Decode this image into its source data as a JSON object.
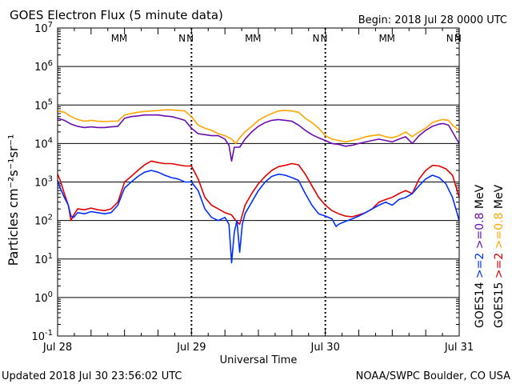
{
  "chart_data": {
    "type": "line",
    "title": "GOES Electron Flux (5 minute data)",
    "begin_label": "Begin: 2018 Jul 28 0000 UTC",
    "xlabel": "Universal Time",
    "ylabel": "Particles cm⁻²s⁻¹sr⁻¹",
    "updated_label": "Updated 2018 Jul 30 23:56:02 UTC",
    "credit_label": "NOAA/SWPC Boulder, CO USA",
    "x_tick_labels": [
      "Jul 28",
      "Jul 29",
      "Jul 30",
      "Jul 31"
    ],
    "x_days": [
      0,
      1,
      2,
      3
    ],
    "y_scale": "log",
    "ylim": [
      0.1,
      10000000
    ],
    "y_tick_exponents": [
      7,
      6,
      5,
      4,
      3,
      2,
      1,
      0,
      -1
    ],
    "alert_threshold": 1000,
    "grid": true,
    "markers": [
      {
        "label": "M",
        "day": 0.43,
        "color": "#0030ff"
      },
      {
        "label": "M",
        "day": 0.49,
        "color": "#e00000"
      },
      {
        "label": "N",
        "day": 0.93,
        "color": "#0030ff"
      },
      {
        "label": "N",
        "day": 0.99,
        "color": "#e00000"
      },
      {
        "label": "M",
        "day": 1.43,
        "color": "#0030ff"
      },
      {
        "label": "M",
        "day": 1.49,
        "color": "#e00000"
      },
      {
        "label": "N",
        "day": 1.93,
        "color": "#0030ff"
      },
      {
        "label": "N",
        "day": 1.99,
        "color": "#e00000"
      },
      {
        "label": "M",
        "day": 2.43,
        "color": "#0030ff"
      },
      {
        "label": "M",
        "day": 2.49,
        "color": "#e00000"
      },
      {
        "label": "N",
        "day": 2.93,
        "color": "#0030ff"
      },
      {
        "label": "N",
        "day": 2.99,
        "color": "#e00000"
      }
    ],
    "legend": {
      "col1": [
        {
          "text": "GOES14",
          "color": "#000000"
        },
        {
          "text": ">=2",
          "color": "#0030ff"
        },
        {
          "text": ">=0.8",
          "color": "#6a0dad"
        },
        {
          "text": "MeV",
          "color": "#000000"
        }
      ],
      "col2": [
        {
          "text": "GOES15",
          "color": "#000000"
        },
        {
          "text": ">=2",
          "color": "#e00000"
        },
        {
          "text": ">=0.8",
          "color": "#ffa500"
        },
        {
          "text": "MeV",
          "color": "#000000"
        }
      ]
    },
    "series": [
      {
        "name": "GOES15 >=0.8 MeV",
        "color": "#ffa500",
        "points": [
          [
            0.0,
            70000
          ],
          [
            0.05,
            65000
          ],
          [
            0.1,
            50000
          ],
          [
            0.15,
            42000
          ],
          [
            0.2,
            38000
          ],
          [
            0.25,
            40000
          ],
          [
            0.3,
            38000
          ],
          [
            0.35,
            37000
          ],
          [
            0.4,
            38000
          ],
          [
            0.45,
            38000
          ],
          [
            0.5,
            55000
          ],
          [
            0.55,
            60000
          ],
          [
            0.6,
            65000
          ],
          [
            0.65,
            68000
          ],
          [
            0.7,
            70000
          ],
          [
            0.75,
            72000
          ],
          [
            0.8,
            75000
          ],
          [
            0.85,
            75000
          ],
          [
            0.9,
            72000
          ],
          [
            0.95,
            70000
          ],
          [
            1.0,
            50000
          ],
          [
            1.05,
            30000
          ],
          [
            1.1,
            25000
          ],
          [
            1.15,
            22000
          ],
          [
            1.2,
            18000
          ],
          [
            1.25,
            16000
          ],
          [
            1.3,
            13000
          ],
          [
            1.33,
            10000
          ],
          [
            1.36,
            14000
          ],
          [
            1.4,
            20000
          ],
          [
            1.45,
            28000
          ],
          [
            1.5,
            40000
          ],
          [
            1.55,
            50000
          ],
          [
            1.6,
            60000
          ],
          [
            1.65,
            70000
          ],
          [
            1.7,
            72000
          ],
          [
            1.75,
            70000
          ],
          [
            1.8,
            65000
          ],
          [
            1.85,
            45000
          ],
          [
            1.9,
            35000
          ],
          [
            1.95,
            25000
          ],
          [
            2.0,
            16000
          ],
          [
            2.05,
            13000
          ],
          [
            2.1,
            12000
          ],
          [
            2.15,
            11000
          ],
          [
            2.2,
            12000
          ],
          [
            2.25,
            13000
          ],
          [
            2.3,
            15000
          ],
          [
            2.35,
            16000
          ],
          [
            2.4,
            17000
          ],
          [
            2.45,
            15000
          ],
          [
            2.5,
            14000
          ],
          [
            2.55,
            16000
          ],
          [
            2.6,
            20000
          ],
          [
            2.65,
            15000
          ],
          [
            2.7,
            20000
          ],
          [
            2.75,
            25000
          ],
          [
            2.8,
            35000
          ],
          [
            2.85,
            40000
          ],
          [
            2.88,
            42000
          ],
          [
            2.92,
            40000
          ],
          [
            2.95,
            30000
          ],
          [
            2.98,
            25000
          ],
          [
            3.0,
            22000
          ]
        ]
      },
      {
        "name": "GOES14 >=0.8 MeV",
        "color": "#6a0dad",
        "points": [
          [
            0.0,
            45000
          ],
          [
            0.05,
            40000
          ],
          [
            0.1,
            32000
          ],
          [
            0.15,
            28000
          ],
          [
            0.2,
            26000
          ],
          [
            0.25,
            27000
          ],
          [
            0.3,
            26000
          ],
          [
            0.35,
            26000
          ],
          [
            0.4,
            27000
          ],
          [
            0.45,
            28000
          ],
          [
            0.5,
            45000
          ],
          [
            0.55,
            50000
          ],
          [
            0.6,
            52000
          ],
          [
            0.65,
            55000
          ],
          [
            0.7,
            55000
          ],
          [
            0.75,
            55000
          ],
          [
            0.8,
            52000
          ],
          [
            0.85,
            50000
          ],
          [
            0.9,
            45000
          ],
          [
            0.95,
            40000
          ],
          [
            1.0,
            25000
          ],
          [
            1.05,
            18000
          ],
          [
            1.1,
            17000
          ],
          [
            1.15,
            16000
          ],
          [
            1.2,
            16000
          ],
          [
            1.25,
            13000
          ],
          [
            1.28,
            9000
          ],
          [
            1.3,
            3500
          ],
          [
            1.32,
            8000
          ],
          [
            1.36,
            8000
          ],
          [
            1.4,
            13000
          ],
          [
            1.45,
            20000
          ],
          [
            1.5,
            28000
          ],
          [
            1.55,
            35000
          ],
          [
            1.6,
            40000
          ],
          [
            1.65,
            42000
          ],
          [
            1.7,
            40000
          ],
          [
            1.75,
            38000
          ],
          [
            1.8,
            30000
          ],
          [
            1.85,
            22000
          ],
          [
            1.9,
            17000
          ],
          [
            1.95,
            14000
          ],
          [
            2.0,
            12000
          ],
          [
            2.05,
            10000
          ],
          [
            2.1,
            9500
          ],
          [
            2.15,
            8500
          ],
          [
            2.2,
            9000
          ],
          [
            2.25,
            10000
          ],
          [
            2.3,
            11000
          ],
          [
            2.35,
            12000
          ],
          [
            2.4,
            13000
          ],
          [
            2.45,
            12000
          ],
          [
            2.5,
            11000
          ],
          [
            2.55,
            13000
          ],
          [
            2.6,
            15000
          ],
          [
            2.65,
            10000
          ],
          [
            2.7,
            16000
          ],
          [
            2.75,
            22000
          ],
          [
            2.8,
            28000
          ],
          [
            2.85,
            32000
          ],
          [
            2.88,
            33000
          ],
          [
            2.92,
            30000
          ],
          [
            2.95,
            20000
          ],
          [
            2.98,
            13000
          ],
          [
            3.0,
            10000
          ]
        ]
      },
      {
        "name": "GOES15 >=2 MeV",
        "color": "#e00000",
        "points": [
          [
            0.0,
            1600
          ],
          [
            0.02,
            1100
          ],
          [
            0.05,
            500
          ],
          [
            0.08,
            250
          ],
          [
            0.1,
            100
          ],
          [
            0.12,
            140
          ],
          [
            0.15,
            200
          ],
          [
            0.2,
            190
          ],
          [
            0.25,
            210
          ],
          [
            0.3,
            190
          ],
          [
            0.35,
            180
          ],
          [
            0.4,
            200
          ],
          [
            0.45,
            300
          ],
          [
            0.5,
            1000
          ],
          [
            0.55,
            1400
          ],
          [
            0.6,
            2000
          ],
          [
            0.65,
            2800
          ],
          [
            0.7,
            3500
          ],
          [
            0.75,
            3200
          ],
          [
            0.8,
            3000
          ],
          [
            0.85,
            3000
          ],
          [
            0.9,
            2800
          ],
          [
            0.95,
            2600
          ],
          [
            1.0,
            2600
          ],
          [
            1.05,
            1200
          ],
          [
            1.1,
            400
          ],
          [
            1.15,
            250
          ],
          [
            1.2,
            200
          ],
          [
            1.25,
            160
          ],
          [
            1.3,
            140
          ],
          [
            1.33,
            100
          ],
          [
            1.36,
            80
          ],
          [
            1.4,
            250
          ],
          [
            1.45,
            500
          ],
          [
            1.5,
            900
          ],
          [
            1.55,
            1400
          ],
          [
            1.6,
            2000
          ],
          [
            1.65,
            2500
          ],
          [
            1.7,
            2700
          ],
          [
            1.75,
            3000
          ],
          [
            1.8,
            2800
          ],
          [
            1.85,
            1600
          ],
          [
            1.9,
            800
          ],
          [
            1.95,
            400
          ],
          [
            2.0,
            250
          ],
          [
            2.05,
            180
          ],
          [
            2.1,
            150
          ],
          [
            2.15,
            130
          ],
          [
            2.2,
            125
          ],
          [
            2.25,
            140
          ],
          [
            2.3,
            160
          ],
          [
            2.35,
            200
          ],
          [
            2.4,
            300
          ],
          [
            2.45,
            350
          ],
          [
            2.5,
            400
          ],
          [
            2.55,
            500
          ],
          [
            2.6,
            600
          ],
          [
            2.65,
            500
          ],
          [
            2.7,
            1200
          ],
          [
            2.75,
            2000
          ],
          [
            2.8,
            2700
          ],
          [
            2.85,
            2600
          ],
          [
            2.9,
            2200
          ],
          [
            2.95,
            1500
          ],
          [
            3.0,
            400
          ]
        ]
      },
      {
        "name": "GOES14 >=2 MeV",
        "color": "#0030ff",
        "points": [
          [
            0.0,
            1100
          ],
          [
            0.02,
            700
          ],
          [
            0.05,
            400
          ],
          [
            0.08,
            250
          ],
          [
            0.1,
            130
          ],
          [
            0.12,
            120
          ],
          [
            0.15,
            160
          ],
          [
            0.2,
            150
          ],
          [
            0.25,
            170
          ],
          [
            0.3,
            160
          ],
          [
            0.35,
            150
          ],
          [
            0.4,
            160
          ],
          [
            0.45,
            250
          ],
          [
            0.5,
            700
          ],
          [
            0.55,
            1000
          ],
          [
            0.6,
            1400
          ],
          [
            0.65,
            1800
          ],
          [
            0.7,
            2000
          ],
          [
            0.75,
            1800
          ],
          [
            0.8,
            1500
          ],
          [
            0.85,
            1300
          ],
          [
            0.9,
            1200
          ],
          [
            0.95,
            1000
          ],
          [
            1.0,
            1000
          ],
          [
            1.05,
            600
          ],
          [
            1.1,
            200
          ],
          [
            1.15,
            120
          ],
          [
            1.2,
            100
          ],
          [
            1.25,
            120
          ],
          [
            1.28,
            80
          ],
          [
            1.3,
            8
          ],
          [
            1.32,
            50
          ],
          [
            1.34,
            100
          ],
          [
            1.36,
            15
          ],
          [
            1.38,
            80
          ],
          [
            1.4,
            150
          ],
          [
            1.45,
            300
          ],
          [
            1.5,
            600
          ],
          [
            1.55,
            1000
          ],
          [
            1.6,
            1400
          ],
          [
            1.65,
            1600
          ],
          [
            1.7,
            1500
          ],
          [
            1.75,
            1300
          ],
          [
            1.8,
            1100
          ],
          [
            1.85,
            500
          ],
          [
            1.9,
            250
          ],
          [
            1.95,
            150
          ],
          [
            2.0,
            130
          ],
          [
            2.05,
            110
          ],
          [
            2.08,
            70
          ],
          [
            2.1,
            80
          ],
          [
            2.15,
            95
          ],
          [
            2.2,
            110
          ],
          [
            2.25,
            130
          ],
          [
            2.3,
            160
          ],
          [
            2.35,
            200
          ],
          [
            2.4,
            250
          ],
          [
            2.45,
            300
          ],
          [
            2.5,
            250
          ],
          [
            2.55,
            350
          ],
          [
            2.6,
            400
          ],
          [
            2.65,
            500
          ],
          [
            2.7,
            800
          ],
          [
            2.75,
            1200
          ],
          [
            2.8,
            1500
          ],
          [
            2.85,
            1300
          ],
          [
            2.9,
            900
          ],
          [
            2.95,
            400
          ],
          [
            3.0,
            100
          ]
        ]
      }
    ]
  }
}
